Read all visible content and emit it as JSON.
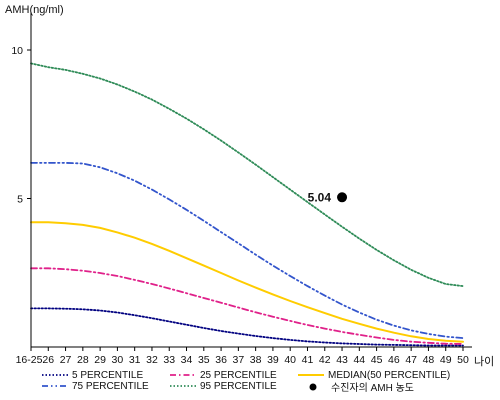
{
  "chart_data": {
    "type": "line",
    "title": "",
    "ylabel": "AMH(ng/ml)",
    "xlabel": "나이",
    "ylim": [
      0,
      11
    ],
    "y_ticks": [
      5,
      10
    ],
    "x": [
      "16-25",
      "26",
      "27",
      "28",
      "29",
      "30",
      "31",
      "32",
      "33",
      "34",
      "35",
      "36",
      "37",
      "38",
      "39",
      "40",
      "41",
      "42",
      "43",
      "44",
      "45",
      "46",
      "47",
      "48",
      "49",
      "50"
    ],
    "series": [
      {
        "name": "5 PERCENTILE",
        "color": "#000080",
        "dash": "dotted",
        "values": [
          1.3,
          1.3,
          1.29,
          1.27,
          1.23,
          1.16,
          1.07,
          0.97,
          0.86,
          0.75,
          0.64,
          0.54,
          0.45,
          0.37,
          0.3,
          0.24,
          0.19,
          0.15,
          0.12,
          0.1,
          0.08,
          0.07,
          0.06,
          0.05,
          0.05,
          0.05
        ]
      },
      {
        "name": "25 PERCENTILE",
        "color": "#e0218a",
        "dash": "dashdot",
        "values": [
          2.65,
          2.65,
          2.62,
          2.57,
          2.49,
          2.39,
          2.26,
          2.12,
          1.97,
          1.81,
          1.65,
          1.49,
          1.33,
          1.17,
          1.02,
          0.88,
          0.74,
          0.62,
          0.51,
          0.41,
          0.32,
          0.24,
          0.18,
          0.14,
          0.11,
          0.1
        ]
      },
      {
        "name": "MEDIAN(50 PERCENTILE)",
        "color": "#ffcc00",
        "dash": "solid",
        "values": [
          4.2,
          4.2,
          4.17,
          4.11,
          4.01,
          3.86,
          3.68,
          3.47,
          3.24,
          2.99,
          2.74,
          2.49,
          2.24,
          2.0,
          1.77,
          1.55,
          1.34,
          1.14,
          0.95,
          0.78,
          0.62,
          0.48,
          0.36,
          0.27,
          0.21,
          0.18
        ]
      },
      {
        "name": "75 PERCENTILE",
        "color": "#3355cc",
        "dash": "dashdotdot",
        "values": [
          6.2,
          6.2,
          6.2,
          6.18,
          6.05,
          5.85,
          5.6,
          5.3,
          4.97,
          4.62,
          4.25,
          3.87,
          3.49,
          3.11,
          2.74,
          2.39,
          2.05,
          1.73,
          1.43,
          1.16,
          0.92,
          0.72,
          0.56,
          0.44,
          0.35,
          0.3
        ]
      },
      {
        "name": "95 PERCENTILE",
        "color": "#2e8b57",
        "dash": "dotted",
        "values": [
          9.55,
          9.42,
          9.33,
          9.2,
          9.04,
          8.84,
          8.6,
          8.33,
          8.02,
          7.69,
          7.33,
          6.95,
          6.55,
          6.14,
          5.72,
          5.3,
          4.88,
          4.46,
          4.05,
          3.65,
          3.27,
          2.92,
          2.6,
          2.33,
          2.12,
          2.05
        ]
      }
    ],
    "points": [
      {
        "name": "수진자의 AMH 농도",
        "x": "43",
        "y": 5.04,
        "label": "5.04",
        "color": "#000000"
      }
    ],
    "legend_position": "bottom"
  }
}
